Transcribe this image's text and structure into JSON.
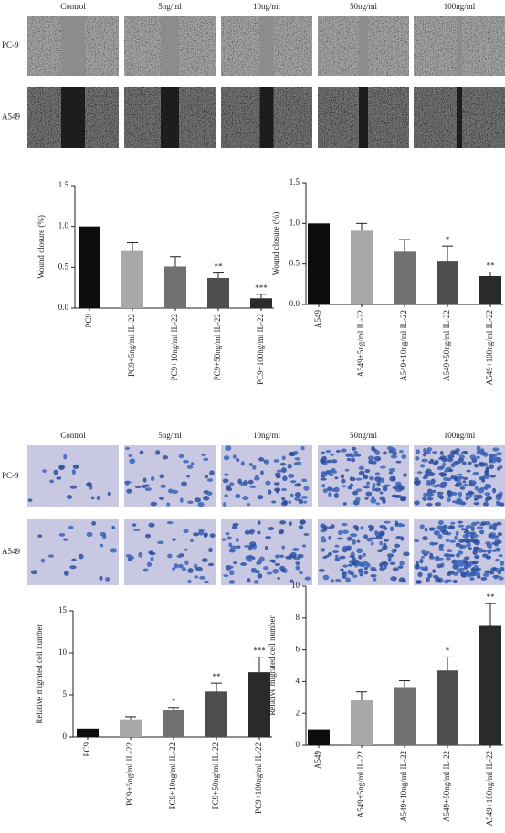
{
  "panels": [
    {
      "columns": [
        "Control",
        "5ng/ml",
        "10ng/ml",
        "50ng/ml",
        "100ng/ml"
      ],
      "rows": [
        "PC-9",
        "A549"
      ]
    },
    {
      "columns": [
        "Control",
        "5ng/ml",
        "10ng/ml",
        "50ng/ml",
        "100ng/ml"
      ],
      "rows": [
        "PC-9",
        "A549"
      ]
    }
  ],
  "chart_data": [
    {
      "type": "bar",
      "y_label": "Wound closure (%)",
      "categories": [
        "PC9",
        "PC9+5ng/ml IL-22",
        "PC9+10ng/ml IL-22",
        "PC9+50ng/ml IL-22",
        "PC9+100ng/ml IL-22"
      ],
      "values": [
        1.0,
        0.71,
        0.51,
        0.37,
        0.12
      ],
      "errors": [
        0,
        0.09,
        0.12,
        0.06,
        0.05
      ],
      "annotations": [
        null,
        null,
        null,
        "**",
        "***"
      ],
      "colors": [
        "#0d0d0d",
        "#a9a9a9",
        "#707070",
        "#4e4e4e",
        "#2a2a2a"
      ],
      "ylim": [
        0,
        1.5
      ],
      "yticks": [
        {
          "value": 0,
          "label": "0.0"
        },
        {
          "value": 0.5,
          "label": "0.5"
        },
        {
          "value": 1,
          "label": "1.0"
        },
        {
          "value": 1.5,
          "label": "1.5"
        }
      ]
    },
    {
      "type": "bar",
      "y_label": "Wound closure (%)",
      "categories": [
        "A549",
        "A549+5ng/ml IL-22",
        "A549+10ng/ml IL-22",
        "A549+50ng/ml IL-22",
        "A549+100ng/ml IL-22"
      ],
      "values": [
        1.0,
        0.91,
        0.65,
        0.54,
        0.35
      ],
      "errors": [
        0,
        0.09,
        0.15,
        0.18,
        0.05
      ],
      "annotations": [
        null,
        null,
        null,
        "*",
        "**"
      ],
      "colors": [
        "#0d0d0d",
        "#a9a9a9",
        "#707070",
        "#4e4e4e",
        "#2a2a2a"
      ],
      "ylim": [
        0,
        1.5
      ],
      "yticks": [
        {
          "value": 0,
          "label": "0.0"
        },
        {
          "value": 0.5,
          "label": "0.5"
        },
        {
          "value": 1,
          "label": "1.0"
        },
        {
          "value": 1.5,
          "label": "1.5"
        }
      ]
    },
    {
      "type": "bar",
      "y_label": "Relative migrated cell number",
      "categories": [
        "PC9",
        "PC9+5ng/ml IL-22",
        "PC9+10ng/ml IL-22",
        "PC9+50ng/ml IL-22",
        "PC9+100ng/ml IL-22"
      ],
      "values": [
        1.0,
        2.1,
        3.2,
        5.4,
        7.7
      ],
      "errors": [
        0,
        0.3,
        0.3,
        1.0,
        1.8
      ],
      "annotations": [
        null,
        null,
        "*",
        "**",
        "***"
      ],
      "colors": [
        "#0d0d0d",
        "#a9a9a9",
        "#707070",
        "#4e4e4e",
        "#2a2a2a"
      ],
      "ylim": [
        0,
        15
      ],
      "yticks": [
        0,
        5,
        10,
        15
      ]
    },
    {
      "type": "bar",
      "y_label": "Relative migrated cell number",
      "categories": [
        "A549",
        "A549+5ng/ml IL-22",
        "A549+10ng/ml IL-22",
        "A549+50ng/ml IL-22",
        "A549+100ng/ml IL-22"
      ],
      "values": [
        1.0,
        2.85,
        3.65,
        4.7,
        7.5
      ],
      "errors": [
        0,
        0.5,
        0.4,
        0.85,
        1.4
      ],
      "annotations": [
        null,
        null,
        null,
        "*",
        "**"
      ],
      "colors": [
        "#0d0d0d",
        "#a9a9a9",
        "#707070",
        "#4e4e4e",
        "#2a2a2a"
      ],
      "ylim": [
        0,
        10
      ],
      "yticks": [
        0,
        2,
        4,
        6,
        8,
        10
      ]
    }
  ]
}
